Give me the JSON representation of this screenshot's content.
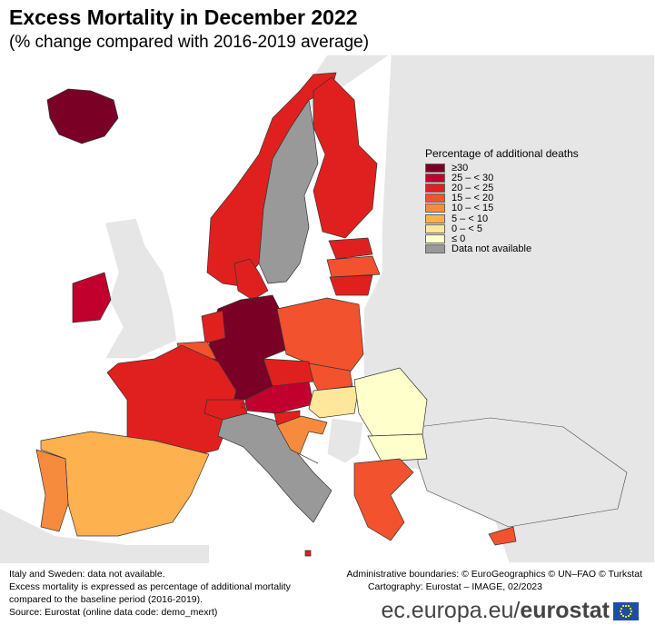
{
  "title": "Excess Mortality in December 2022",
  "subtitle": "(% change compared with 2016-2019 average)",
  "legend": {
    "title": "Percentage of additional deaths",
    "classes": [
      {
        "label": "≥30",
        "color": "#7a0026"
      },
      {
        "label": "25 – < 30",
        "color": "#c1002e"
      },
      {
        "label": "20 – < 25",
        "color": "#e0201f"
      },
      {
        "label": "15 – < 20",
        "color": "#f3522e"
      },
      {
        "label": "10 – < 15",
        "color": "#f78b3d"
      },
      {
        "label": "5 – < 10",
        "color": "#fdb14f"
      },
      {
        "label": "0 – < 5",
        "color": "#fee79b"
      },
      {
        "label": "≤ 0",
        "color": "#ffffcc"
      },
      {
        "label": "Data not available",
        "color": "#999999"
      }
    ]
  },
  "countries": {
    "Iceland": 0,
    "Ireland": 1,
    "Norway": 2,
    "Finland": 2,
    "Sweden": 8,
    "Estonia": 2,
    "Latvia": 3,
    "Lithuania": 2,
    "Denmark": 2,
    "Germany": 0,
    "Poland": 3,
    "Netherlands": 2,
    "Belgium": 3,
    "Luxembourg": 2,
    "France": 2,
    "Spain": 5,
    "Portugal": 4,
    "Switzerland": 2,
    "Austria": 1,
    "Czechia": 2,
    "Slovakia": 3,
    "Hungary": 6,
    "Slovenia": 2,
    "Croatia": 4,
    "Romania": 7,
    "Bulgaria": 7,
    "Greece": 3,
    "Cyprus": 3,
    "Italy": 8,
    "Malta": 2,
    "Liechtenstein": 2
  },
  "colors": {
    "non_eu_land": "#e6e6e6",
    "sea": "#ffffff",
    "border": "#333333"
  },
  "notes": [
    "Italy and Sweden: data not available.",
    "Excess mortality is expressed as percentage of additional mortality",
    "compared to the baseline period (2016-2019).",
    "Source: Eurostat (online data code: demo_mexrt)"
  ],
  "credits": [
    "Administrative boundaries: © EuroGeographics © UN–FAO © Turkstat",
    "Cartography: Eurostat – IMAGE, 02/2023"
  ],
  "brand": {
    "prefix": "ec.europa.eu/",
    "name": "eurostat"
  }
}
